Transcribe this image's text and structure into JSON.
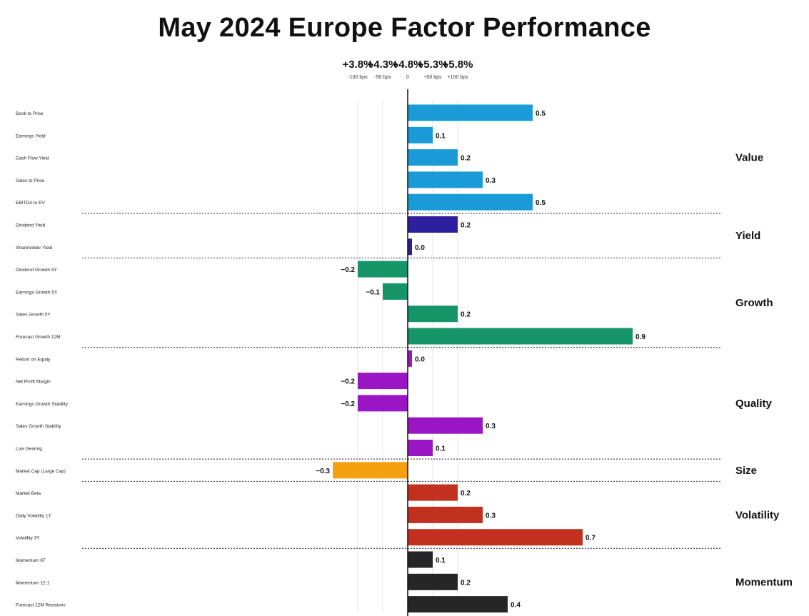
{
  "chart_data": {
    "type": "bar",
    "orientation": "horizontal",
    "title": "May 2024 Europe Factor Performance",
    "x_ticks": [
      {
        "value": -100,
        "label": "+3.8%",
        "sublabel": "-100 bps"
      },
      {
        "value": -50,
        "label": "+4.3%",
        "sublabel": "-50 bps"
      },
      {
        "value": 0,
        "label": "+4.8%",
        "sublabel": "0"
      },
      {
        "value": 50,
        "label": "+5.3%",
        "sublabel": "+50 bps"
      },
      {
        "value": 100,
        "label": "+5.8%",
        "sublabel": "+100 bps"
      }
    ],
    "xlim": [
      -1.35,
      1.2
    ],
    "grid": true,
    "groups": [
      {
        "name": "Value",
        "color": "#1a9bd7",
        "items": [
          {
            "label": "Book to Price",
            "value": 0.5
          },
          {
            "label": "Earnings Yield",
            "value": 0.1
          },
          {
            "label": "Cash Flow Yield",
            "value": 0.2
          },
          {
            "label": "Sales to Price",
            "value": 0.3
          },
          {
            "label": "EBITDA to EV",
            "value": 0.5
          }
        ]
      },
      {
        "name": "Yield",
        "color": "#2e1f9e",
        "items": [
          {
            "label": "Dividend Yield",
            "value": 0.2
          },
          {
            "label": "Shareholder Yield",
            "value": 0.0
          }
        ]
      },
      {
        "name": "Growth",
        "color": "#169569",
        "items": [
          {
            "label": "Dividend Growth 5Y",
            "value": -0.2
          },
          {
            "label": "Earnings Growth 5Y",
            "value": -0.1
          },
          {
            "label": "Sales Growth 5Y",
            "value": 0.2
          },
          {
            "label": "Forecast Growth 12M",
            "value": 0.9
          }
        ]
      },
      {
        "name": "Quality",
        "color": "#9a16c4",
        "items": [
          {
            "label": "Return on Equity",
            "value": 0.0
          },
          {
            "label": "Net Profit Margin",
            "value": -0.2
          },
          {
            "label": "Earnings Growth Stability",
            "value": -0.2
          },
          {
            "label": "Sales Growth Stability",
            "value": 0.3
          },
          {
            "label": "Low Gearing",
            "value": 0.1
          }
        ]
      },
      {
        "name": "Size",
        "color": "#f5a00f",
        "items": [
          {
            "label": "Market Cap (Large Cap)",
            "value": -0.3
          }
        ]
      },
      {
        "name": "Volatility",
        "color": "#c2311f",
        "items": [
          {
            "label": "Market Beta",
            "value": 0.2
          },
          {
            "label": "Daily Volatility 1Y",
            "value": 0.3
          },
          {
            "label": "Volatility 3Y",
            "value": 0.7
          }
        ]
      },
      {
        "name": "Momentum",
        "color": "#262626",
        "items": [
          {
            "label": "Momentum 6T",
            "value": 0.1
          },
          {
            "label": "Momentum 12-1",
            "value": 0.2
          },
          {
            "label": "Forecast 12M Revisions",
            "value": 0.4
          }
        ]
      }
    ]
  }
}
